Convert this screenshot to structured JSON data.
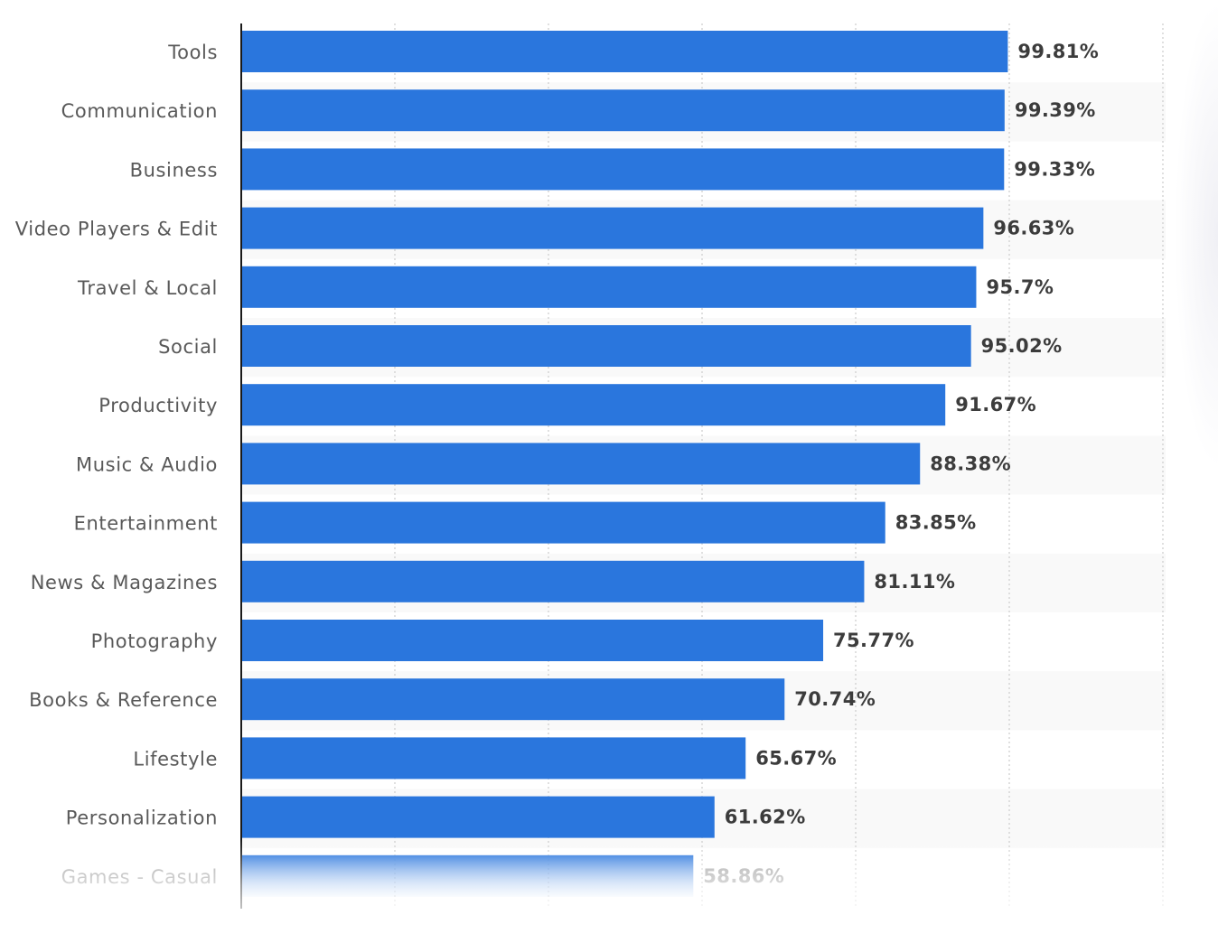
{
  "chart_data": {
    "type": "bar",
    "orientation": "horizontal",
    "categories": [
      "Tools",
      "Communication",
      "Business",
      "Video Players & Edit",
      "Travel & Local",
      "Social",
      "Productivity",
      "Music & Audio",
      "Entertainment",
      "News & Magazines",
      "Photography",
      "Books & Reference",
      "Lifestyle",
      "Personalization",
      "Games - Casual"
    ],
    "values": [
      99.81,
      99.39,
      99.33,
      96.63,
      95.7,
      95.02,
      91.67,
      88.38,
      83.85,
      81.11,
      75.77,
      70.74,
      65.67,
      61.62,
      58.86
    ],
    "value_labels": [
      "99.81%",
      "99.39%",
      "99.33%",
      "96.63%",
      "95.7%",
      "95.02%",
      "91.67%",
      "88.38%",
      "83.85%",
      "81.11%",
      "75.77%",
      "70.74%",
      "65.67%",
      "61.62%",
      "58.86%"
    ],
    "title": "",
    "xlabel": "",
    "ylabel": "",
    "xlim": [
      0,
      120
    ],
    "grid": true,
    "legend": "none",
    "colors": {
      "bar": "#2a76dd",
      "grid": "#cfcfcf",
      "band": "#f9f9f9",
      "axis": "#1a1a1a"
    }
  }
}
